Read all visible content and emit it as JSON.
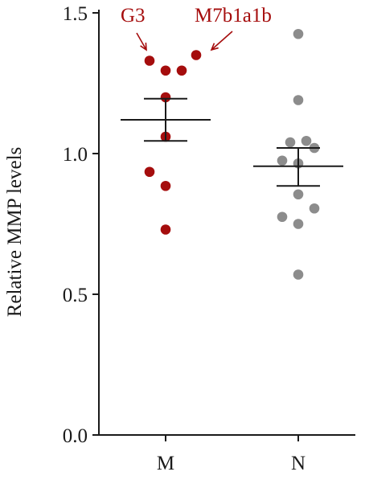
{
  "chart_data": {
    "type": "scatter",
    "ylabel": "Relative MMP levels",
    "ylim": [
      0.0,
      1.5
    ],
    "yticks": [
      0.0,
      0.5,
      1.0,
      1.5
    ],
    "ytick_labels": [
      "0.0",
      "0.5",
      "1.0",
      "1.5"
    ],
    "categories": [
      "M",
      "N"
    ],
    "grid": false,
    "series": [
      {
        "category": "M",
        "color": "#a50d0d",
        "mean": 1.12,
        "sem_low": 1.045,
        "sem_high": 1.195,
        "points": [
          {
            "value": 1.33,
            "offset": -0.5
          },
          {
            "value": 1.35,
            "offset": 0.95
          },
          {
            "value": 1.295,
            "offset": 0.0
          },
          {
            "value": 1.295,
            "offset": 0.5
          },
          {
            "value": 1.2,
            "offset": 0.0
          },
          {
            "value": 1.06,
            "offset": 0.0
          },
          {
            "value": 0.935,
            "offset": -0.5
          },
          {
            "value": 0.885,
            "offset": 0.0
          },
          {
            "value": 0.73,
            "offset": 0.0
          }
        ]
      },
      {
        "category": "N",
        "color": "#8c8c8c",
        "mean": 0.955,
        "sem_low": 0.885,
        "sem_high": 1.02,
        "points": [
          {
            "value": 1.425,
            "offset": 0.0
          },
          {
            "value": 1.19,
            "offset": 0.0
          },
          {
            "value": 1.04,
            "offset": -0.25
          },
          {
            "value": 1.045,
            "offset": 0.25
          },
          {
            "value": 1.02,
            "offset": 0.5
          },
          {
            "value": 0.975,
            "offset": -0.5
          },
          {
            "value": 0.965,
            "offset": 0.0
          },
          {
            "value": 0.855,
            "offset": 0.0
          },
          {
            "value": 0.805,
            "offset": 0.5
          },
          {
            "value": 0.775,
            "offset": -0.5
          },
          {
            "value": 0.75,
            "offset": 0.0
          },
          {
            "value": 0.57,
            "offset": 0.0
          }
        ]
      }
    ],
    "annotations": [
      {
        "text": "G3",
        "color": "#a50d0d",
        "target": "M",
        "point_index": 0
      },
      {
        "text": "M7b1a1b",
        "color": "#a50d0d",
        "target": "M",
        "point_index": 1
      }
    ]
  }
}
